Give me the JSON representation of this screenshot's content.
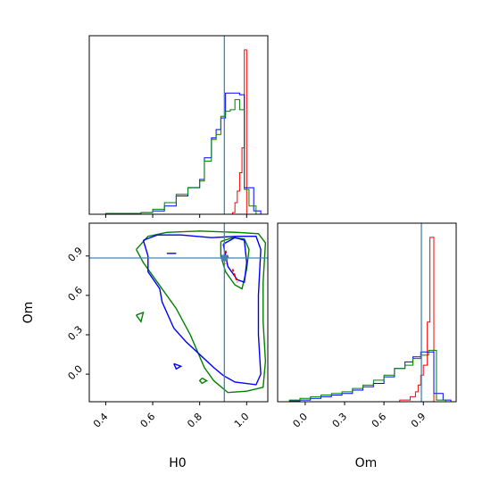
{
  "chart_data": {
    "type": "corner",
    "parameters": [
      "H0",
      "Om"
    ],
    "truth": {
      "H0": 0.905,
      "Om": 0.885
    },
    "truth_color": "#4682b4",
    "series_colors": [
      "#ff0000",
      "#0000ff",
      "#008000"
    ],
    "panels": [
      {
        "id": "h0_hist",
        "type": "histogram",
        "x_param": "H0",
        "xlim": [
          0.33,
          1.09
        ],
        "x_ticks": [
          "0.4",
          "0.6",
          "0.8",
          "1.0"
        ],
        "x_tick_values": [
          0.4,
          0.6,
          0.8,
          1.0
        ],
        "series": [
          {
            "color": "#ff0000",
            "steps": [
              [
                0.7,
                0.0
              ],
              [
                0.84,
                0.0
              ],
              [
                0.88,
                0.0
              ],
              [
                0.92,
                0.0
              ],
              [
                0.94,
                0.01
              ],
              [
                0.95,
                0.07
              ],
              [
                0.96,
                0.14
              ],
              [
                0.97,
                0.25
              ],
              [
                0.98,
                0.4
              ],
              [
                0.99,
                0.99
              ],
              [
                1.0,
                0.0
              ],
              [
                1.09,
                0.0
              ]
            ]
          },
          {
            "color": "#0000ff",
            "steps": [
              [
                0.33,
                0.0
              ],
              [
                0.4,
                0.005
              ],
              [
                0.55,
                0.01
              ],
              [
                0.6,
                0.02
              ],
              [
                0.65,
                0.05
              ],
              [
                0.7,
                0.11
              ],
              [
                0.75,
                0.16
              ],
              [
                0.8,
                0.21
              ],
              [
                0.82,
                0.34
              ],
              [
                0.85,
                0.46
              ],
              [
                0.87,
                0.51
              ],
              [
                0.89,
                0.58
              ],
              [
                0.91,
                0.73
              ],
              [
                0.97,
                0.72
              ],
              [
                0.99,
                0.16
              ],
              [
                1.03,
                0.02
              ],
              [
                1.06,
                0.0
              ],
              [
                1.09,
                0.0
              ]
            ]
          },
          {
            "color": "#008000",
            "steps": [
              [
                0.33,
                0.0
              ],
              [
                0.4,
                0.005
              ],
              [
                0.55,
                0.01
              ],
              [
                0.6,
                0.03
              ],
              [
                0.65,
                0.07
              ],
              [
                0.7,
                0.12
              ],
              [
                0.75,
                0.16
              ],
              [
                0.8,
                0.2
              ],
              [
                0.82,
                0.32
              ],
              [
                0.85,
                0.45
              ],
              [
                0.87,
                0.48
              ],
              [
                0.89,
                0.59
              ],
              [
                0.91,
                0.62
              ],
              [
                0.93,
                0.63
              ],
              [
                0.95,
                0.69
              ],
              [
                0.97,
                0.63
              ],
              [
                0.99,
                0.15
              ],
              [
                1.01,
                0.05
              ],
              [
                1.04,
                0.0
              ],
              [
                1.09,
                0.0
              ]
            ]
          }
        ]
      },
      {
        "id": "contour",
        "type": "contour",
        "x_param": "H0",
        "y_param": "Om",
        "xlim": [
          0.33,
          1.09
        ],
        "ylim": [
          -0.21,
          1.15
        ],
        "x_ticks": [
          "0.4",
          "0.6",
          "0.8",
          "1.0"
        ],
        "x_tick_values": [
          0.4,
          0.6,
          0.8,
          1.0
        ],
        "y_ticks": [
          "0.0",
          "0.3",
          "0.6",
          "0.9"
        ],
        "y_tick_values": [
          0.0,
          0.3,
          0.6,
          0.9
        ],
        "series": [
          {
            "color": "#008000",
            "contours": [
              [
                [
                  0.53,
                  0.95
                ],
                [
                  0.58,
                  1.05
                ],
                [
                  0.66,
                  1.08
                ],
                [
                  0.8,
                  1.09
                ],
                [
                  0.96,
                  1.08
                ],
                [
                  1.05,
                  1.07
                ],
                [
                  1.08,
                  1.0
                ],
                [
                  1.07,
                  0.7
                ],
                [
                  1.07,
                  0.4
                ],
                [
                  1.08,
                  0.1
                ],
                [
                  1.07,
                  -0.1
                ],
                [
                  1.0,
                  -0.13
                ],
                [
                  0.92,
                  -0.14
                ],
                [
                  0.86,
                  -0.05
                ],
                [
                  0.82,
                  0.05
                ],
                [
                  0.76,
                  0.3
                ],
                [
                  0.7,
                  0.5
                ],
                [
                  0.62,
                  0.7
                ],
                [
                  0.56,
                  0.85
                ],
                [
                  0.53,
                  0.95
                ]
              ],
              [
                [
                  0.53,
                  0.45
                ],
                [
                  0.55,
                  0.4
                ],
                [
                  0.56,
                  0.47
                ],
                [
                  0.53,
                  0.45
                ]
              ],
              [
                [
                  0.81,
                  -0.03
                ],
                [
                  0.83,
                  -0.05
                ],
                [
                  0.81,
                  -0.07
                ],
                [
                  0.8,
                  -0.05
                ],
                [
                  0.81,
                  -0.03
                ]
              ],
              [
                [
                  0.89,
                  1.01
                ],
                [
                  0.94,
                  1.04
                ],
                [
                  0.99,
                  1.03
                ],
                [
                  1.01,
                  0.95
                ],
                [
                  1.0,
                  0.8
                ],
                [
                  0.98,
                  0.65
                ],
                [
                  0.95,
                  0.68
                ],
                [
                  0.91,
                  0.78
                ],
                [
                  0.89,
                  0.9
                ],
                [
                  0.89,
                  1.01
                ]
              ]
            ]
          },
          {
            "color": "#0000ff",
            "contours": [
              [
                [
                  0.56,
                  1.02
                ],
                [
                  0.62,
                  1.06
                ],
                [
                  0.72,
                  1.06
                ],
                [
                  0.85,
                  1.04
                ],
                [
                  0.96,
                  1.05
                ],
                [
                  1.04,
                  1.05
                ],
                [
                  1.06,
                  0.95
                ],
                [
                  1.05,
                  0.6
                ],
                [
                  1.05,
                  0.3
                ],
                [
                  1.06,
                  0.0
                ],
                [
                  1.04,
                  -0.08
                ],
                [
                  0.95,
                  -0.06
                ],
                [
                  0.9,
                  -0.01
                ],
                [
                  0.86,
                  0.05
                ],
                [
                  0.8,
                  0.15
                ],
                [
                  0.74,
                  0.25
                ],
                [
                  0.69,
                  0.35
                ],
                [
                  0.64,
                  0.55
                ],
                [
                  0.63,
                  0.65
                ],
                [
                  0.58,
                  0.78
                ],
                [
                  0.58,
                  0.9
                ],
                [
                  0.56,
                  1.02
                ]
              ],
              [
                [
                  0.66,
                  0.92
                ],
                [
                  0.7,
                  0.92
                ]
              ],
              [
                [
                  0.69,
                  0.08
                ],
                [
                  0.72,
                  0.06
                ],
                [
                  0.7,
                  0.04
                ],
                [
                  0.69,
                  0.08
                ]
              ],
              [
                [
                  0.9,
                  0.99
                ],
                [
                  0.95,
                  1.04
                ],
                [
                  0.99,
                  1.02
                ],
                [
                  1.0,
                  0.85
                ],
                [
                  0.99,
                  0.7
                ],
                [
                  0.96,
                  0.72
                ],
                [
                  0.92,
                  0.82
                ],
                [
                  0.9,
                  0.99
                ]
              ]
            ]
          },
          {
            "color": "#ff0000",
            "contours": [
              [
                [
                  0.91,
                  0.94
                ],
                [
                  0.92,
                  0.89
                ],
                [
                  0.91,
                  0.84
                ]
              ],
              [
                [
                  0.94,
                  0.8
                ],
                [
                  0.95,
                  0.75
                ],
                [
                  0.96,
                  0.7
                ]
              ]
            ]
          }
        ]
      },
      {
        "id": "om_hist",
        "type": "histogram",
        "x_param": "Om",
        "xlim": [
          -0.21,
          1.15
        ],
        "x_ticks": [
          "0.0",
          "0.3",
          "0.6",
          "0.9"
        ],
        "x_tick_values": [
          0.0,
          0.3,
          0.6,
          0.9
        ],
        "series": [
          {
            "color": "#ff0000",
            "steps": [
              [
                0.6,
                0.0
              ],
              [
                0.72,
                0.01
              ],
              [
                0.8,
                0.03
              ],
              [
                0.84,
                0.06
              ],
              [
                0.86,
                0.1
              ],
              [
                0.88,
                0.16
              ],
              [
                0.9,
                0.22
              ],
              [
                0.93,
                0.48
              ],
              [
                0.95,
                0.99
              ],
              [
                0.98,
                0.0
              ],
              [
                1.15,
                0.0
              ]
            ]
          },
          {
            "color": "#0000ff",
            "steps": [
              [
                -0.21,
                0.0
              ],
              [
                -0.12,
                0.005
              ],
              [
                -0.04,
                0.01
              ],
              [
                0.04,
                0.02
              ],
              [
                0.12,
                0.03
              ],
              [
                0.2,
                0.04
              ],
              [
                0.28,
                0.05
              ],
              [
                0.36,
                0.07
              ],
              [
                0.44,
                0.09
              ],
              [
                0.52,
                0.11
              ],
              [
                0.6,
                0.15
              ],
              [
                0.68,
                0.2
              ],
              [
                0.76,
                0.24
              ],
              [
                0.82,
                0.27
              ],
              [
                0.88,
                0.3
              ],
              [
                0.94,
                0.3
              ],
              [
                0.98,
                0.05
              ],
              [
                1.05,
                0.01
              ],
              [
                1.11,
                0.0
              ],
              [
                1.15,
                0.0
              ]
            ]
          },
          {
            "color": "#008000",
            "steps": [
              [
                -0.21,
                0.0
              ],
              [
                -0.12,
                0.01
              ],
              [
                -0.04,
                0.02
              ],
              [
                0.04,
                0.03
              ],
              [
                0.12,
                0.04
              ],
              [
                0.2,
                0.05
              ],
              [
                0.28,
                0.06
              ],
              [
                0.36,
                0.08
              ],
              [
                0.44,
                0.1
              ],
              [
                0.52,
                0.13
              ],
              [
                0.6,
                0.16
              ],
              [
                0.68,
                0.2
              ],
              [
                0.76,
                0.22
              ],
              [
                0.82,
                0.26
              ],
              [
                0.88,
                0.28
              ],
              [
                0.94,
                0.31
              ],
              [
                1.0,
                0.01
              ],
              [
                1.07,
                0.0
              ],
              [
                1.15,
                0.0
              ]
            ]
          }
        ]
      }
    ]
  }
}
